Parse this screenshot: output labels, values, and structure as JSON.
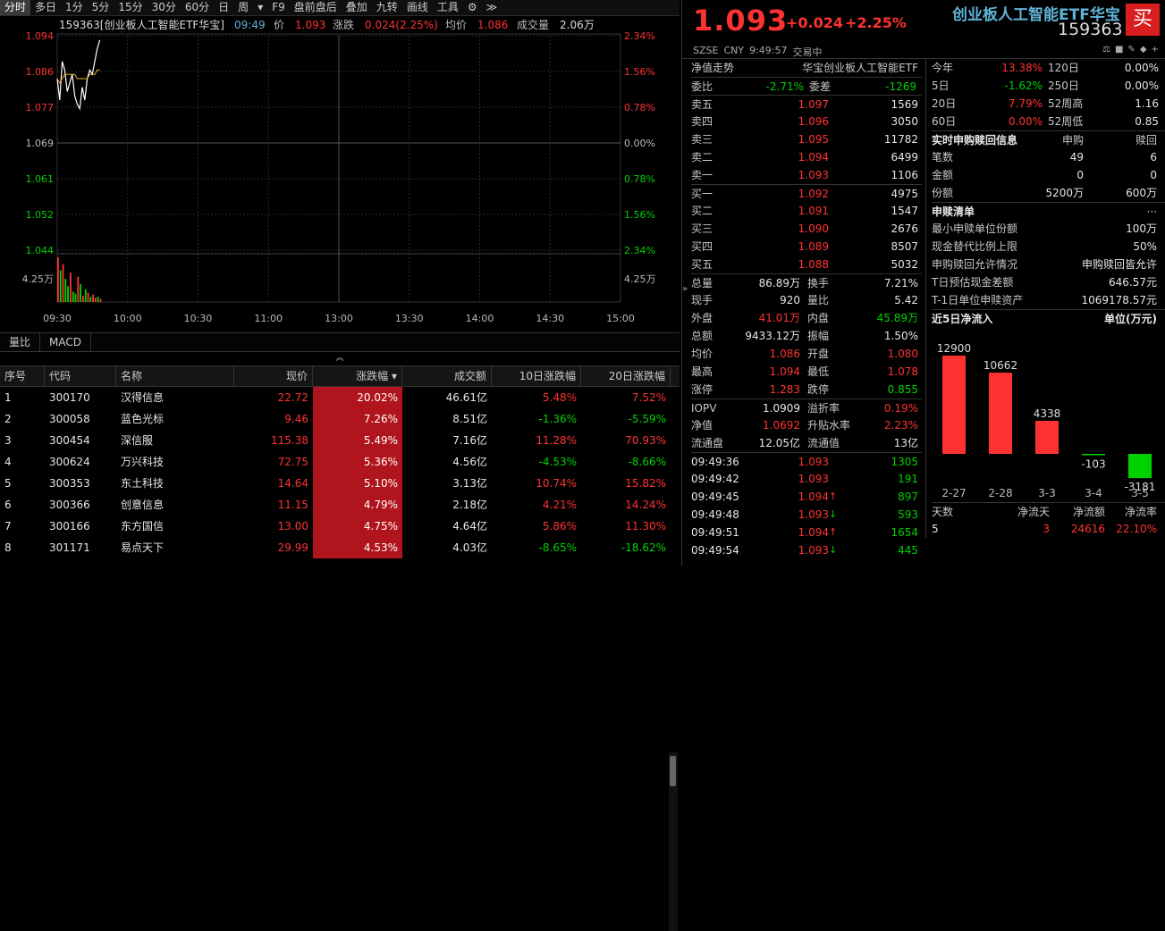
{
  "toolbar": [
    "分时",
    "多日",
    "1分",
    "5分",
    "15分",
    "30分",
    "60分",
    "日",
    "周",
    "▾",
    "F9",
    "盘前盘后",
    "叠加",
    "九转",
    "画线",
    "工具",
    "⚙",
    "≫"
  ],
  "chart_header": {
    "name": "159363[创业板人工智能ETF华宝]",
    "time": "09:49",
    "price_label": "价",
    "price": "1.093",
    "chg_label": "涨跌",
    "chg": "0.024(2.25%)",
    "avg_label": "均价",
    "avg": "1.086",
    "vol_label": "成交量",
    "vol": "2.06万"
  },
  "chart_data": {
    "type": "line",
    "title": "",
    "x_ticks": [
      "09:30",
      "10:00",
      "10:30",
      "11:00",
      "13:00",
      "13:30",
      "14:00",
      "14:30",
      "15:00"
    ],
    "y_left": [
      "1.094",
      "1.086",
      "1.077",
      "1.069",
      "1.061",
      "1.052",
      "1.044"
    ],
    "y_right": [
      "2.34%",
      "1.56%",
      "0.78%",
      "0.00%",
      "0.78%",
      "1.56%",
      "2.34%"
    ],
    "vol_axis": "4.25万",
    "ylim": [
      1.044,
      1.094
    ],
    "price_series": [
      1.084,
      1.079,
      1.088,
      1.086,
      1.081,
      1.083,
      1.085,
      1.08,
      1.078,
      1.077,
      1.082,
      1.079,
      1.084,
      1.086,
      1.085,
      1.088,
      1.091,
      1.093
    ],
    "avg_series": [
      1.084,
      1.083,
      1.084,
      1.085,
      1.085,
      1.085,
      1.085,
      1.085,
      1.084,
      1.084,
      1.084,
      1.084,
      1.084,
      1.085,
      1.085,
      1.085,
      1.086,
      1.086
    ],
    "volumes": [
      4.25,
      3.0,
      3.6,
      2.2,
      1.5,
      2.8,
      1.0,
      0.8,
      2.4,
      1.7,
      0.6,
      1.2,
      0.9,
      0.5,
      0.7,
      0.4,
      0.5,
      0.3
    ],
    "vol_colors": [
      "r",
      "g",
      "r",
      "g",
      "g",
      "r",
      "g",
      "g",
      "r",
      "g",
      "r",
      "g",
      "r",
      "g",
      "r",
      "r",
      "g",
      "r"
    ]
  },
  "subtabs": [
    "量比",
    "MACD"
  ],
  "table": {
    "headers": [
      "序号",
      "代码",
      "名称",
      "现价",
      "涨跌幅 ▾",
      "成交额",
      "10日涨跌幅",
      "20日涨跌幅"
    ],
    "rows": [
      [
        "1",
        "300170",
        "汉得信息",
        "22.72",
        "20.02%",
        "46.61亿",
        "5.48%",
        "7.52%"
      ],
      [
        "2",
        "300058",
        "蓝色光标",
        "9.46",
        "7.26%",
        "8.51亿",
        "-1.36%",
        "-5.59%"
      ],
      [
        "3",
        "300454",
        "深信服",
        "115.38",
        "5.49%",
        "7.16亿",
        "11.28%",
        "70.93%"
      ],
      [
        "4",
        "300624",
        "万兴科技",
        "72.75",
        "5.36%",
        "4.56亿",
        "-4.53%",
        "-8.66%"
      ],
      [
        "5",
        "300353",
        "东土科技",
        "14.64",
        "5.10%",
        "3.13亿",
        "10.74%",
        "15.82%"
      ],
      [
        "6",
        "300366",
        "创意信息",
        "11.15",
        "4.79%",
        "2.18亿",
        "4.21%",
        "14.24%"
      ],
      [
        "7",
        "300166",
        "东方国信",
        "13.00",
        "4.75%",
        "4.64亿",
        "5.86%",
        "11.30%"
      ],
      [
        "8",
        "301171",
        "易点天下",
        "29.99",
        "4.53%",
        "4.03亿",
        "-8.65%",
        "-18.62%"
      ]
    ]
  },
  "header": {
    "price": "1.093",
    "chg": "+0.024",
    "chgp": "+2.25%",
    "name": "创业板人工智能ETF华宝",
    "code": "159363",
    "buy": "买",
    "exch": "SZSE",
    "cur": "CNY",
    "time": "9:49:57",
    "status": "交易中"
  },
  "nav": {
    "label": "净值走势",
    "fund": "华宝创业板人工智能ETF"
  },
  "weibi": {
    "k1": "委比",
    "v1": "-2.71%",
    "k2": "委差",
    "v2": "-1269"
  },
  "sells": [
    [
      "卖五",
      "1.097",
      "1569"
    ],
    [
      "卖四",
      "1.096",
      "3050"
    ],
    [
      "卖三",
      "1.095",
      "11782"
    ],
    [
      "卖二",
      "1.094",
      "6499"
    ],
    [
      "卖一",
      "1.093",
      "1106"
    ]
  ],
  "buys": [
    [
      "买一",
      "1.092",
      "4975"
    ],
    [
      "买二",
      "1.091",
      "1547"
    ],
    [
      "买三",
      "1.090",
      "2676"
    ],
    [
      "买四",
      "1.089",
      "8507"
    ],
    [
      "买五",
      "1.088",
      "5032"
    ]
  ],
  "stats": [
    [
      "总量",
      "86.89万",
      "换手",
      "7.21%"
    ],
    [
      "现手",
      "920",
      "量比",
      "5.42"
    ],
    [
      "外盘",
      "41.01万",
      "内盘",
      "45.89万"
    ],
    [
      "总额",
      "9433.12万",
      "振幅",
      "1.50%"
    ],
    [
      "均价",
      "1.086",
      "开盘",
      "1.080"
    ],
    [
      "最高",
      "1.094",
      "最低",
      "1.078"
    ],
    [
      "涨停",
      "1.283",
      "跌停",
      "0.855"
    ]
  ],
  "iopv": [
    [
      "IOPV",
      "1.0909",
      "溢折率",
      "0.19%"
    ],
    [
      "净值",
      "1.0692",
      "升贴水率",
      "2.23%"
    ],
    [
      "流通盘",
      "12.05亿",
      "流通值",
      "13亿"
    ]
  ],
  "ticks": [
    [
      "09:49:36",
      "1.093",
      "",
      "1305"
    ],
    [
      "09:49:42",
      "1.093",
      "",
      "191"
    ],
    [
      "09:49:45",
      "1.094",
      "↑",
      "897"
    ],
    [
      "09:49:48",
      "1.093",
      "↓",
      "593"
    ],
    [
      "09:49:51",
      "1.094",
      "↑",
      "1654"
    ],
    [
      "09:49:54",
      "1.093",
      "↓",
      "445"
    ]
  ],
  "perf": [
    [
      "今年",
      "13.38%",
      "120日",
      "0.00%"
    ],
    [
      "5日",
      "-1.62%",
      "250日",
      "0.00%"
    ],
    [
      "20日",
      "7.79%",
      "52周高",
      "1.16"
    ],
    [
      "60日",
      "0.00%",
      "52周低",
      "0.85"
    ]
  ],
  "sub": {
    "title": "实时申购赎回信息",
    "h1": "申购",
    "h2": "赎回",
    "rows": [
      [
        "笔数",
        "49",
        "6"
      ],
      [
        "金额",
        "0",
        "0"
      ],
      [
        "份额",
        "5200万",
        "600万"
      ]
    ]
  },
  "list": {
    "title": "申赎清单",
    "more": "···",
    "rows": [
      [
        "最小申赎单位份额",
        "100万"
      ],
      [
        "现金替代比例上限",
        "50%"
      ],
      [
        "申购赎回允许情况",
        "申购赎回皆允许"
      ],
      [
        "T日预估现金差额",
        "646.57元"
      ],
      [
        "T-1日单位申赎资产",
        "1069178.57元"
      ]
    ]
  },
  "flow": {
    "title": "近5日净流入",
    "unit": "单位(万元)",
    "bars": [
      {
        "d": "2-27",
        "v": 12900
      },
      {
        "d": "2-28",
        "v": 10662
      },
      {
        "d": "3-3",
        "v": 4338
      },
      {
        "d": "3-4",
        "v": -103
      },
      {
        "d": "3-5",
        "v": -3181
      }
    ],
    "foot": [
      "天数",
      "净流天",
      "净流额",
      "净流率"
    ],
    "foot_vals": [
      "5",
      "3",
      "24616",
      "22.10%"
    ]
  }
}
